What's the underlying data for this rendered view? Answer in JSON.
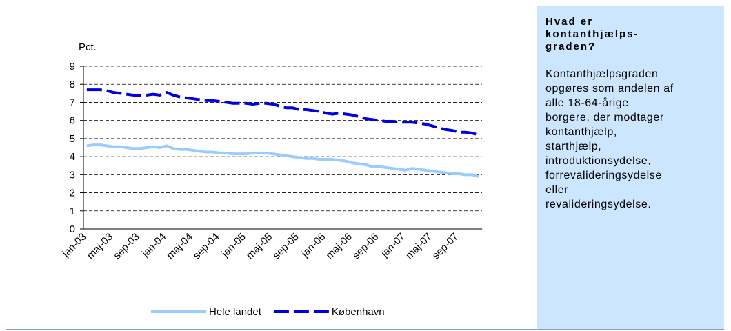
{
  "chart_data": {
    "type": "line",
    "y_label": "Pct.",
    "categories": [
      "jan-03",
      null,
      null,
      null,
      "maj-03",
      null,
      null,
      null,
      "sep-03",
      null,
      null,
      null,
      "jan-04",
      null,
      null,
      null,
      "maj-04",
      null,
      null,
      null,
      "sep-04",
      null,
      null,
      null,
      "jan-05",
      null,
      null,
      null,
      "maj-05",
      null,
      null,
      null,
      "sep-05",
      null,
      null,
      null,
      "jan-06",
      null,
      null,
      null,
      "maj-06",
      null,
      null,
      null,
      "sep-06",
      null,
      null,
      null,
      "jan-07",
      null,
      null,
      null,
      "maj-07",
      null,
      null,
      null,
      "sep-07",
      null,
      null,
      null
    ],
    "series": [
      {
        "name": "Hele landet",
        "color": "#99ccff",
        "dashed": false,
        "values": [
          4.6,
          4.65,
          4.65,
          4.6,
          4.55,
          4.55,
          4.5,
          4.45,
          4.45,
          4.5,
          4.55,
          4.5,
          4.6,
          4.45,
          4.4,
          4.4,
          4.35,
          4.3,
          4.25,
          4.25,
          4.2,
          4.2,
          4.15,
          4.15,
          4.15,
          4.2,
          4.2,
          4.2,
          4.15,
          4.1,
          4.05,
          4.0,
          3.95,
          3.9,
          3.9,
          3.85,
          3.85,
          3.85,
          3.8,
          3.75,
          3.65,
          3.6,
          3.55,
          3.45,
          3.45,
          3.4,
          3.35,
          3.3,
          3.25,
          3.35,
          3.3,
          3.25,
          3.2,
          3.15,
          3.1,
          3.05,
          3.05,
          3.0,
          3.0,
          2.9
        ]
      },
      {
        "name": "København",
        "color": "#0000dd",
        "dashed": true,
        "values": [
          7.7,
          7.7,
          7.7,
          7.65,
          7.55,
          7.5,
          7.45,
          7.4,
          7.4,
          7.4,
          7.45,
          7.4,
          7.55,
          7.4,
          7.3,
          7.25,
          7.2,
          7.15,
          7.1,
          7.1,
          7.05,
          7.0,
          6.95,
          6.95,
          6.95,
          6.9,
          6.95,
          6.95,
          6.9,
          6.8,
          6.7,
          6.7,
          6.6,
          6.6,
          6.55,
          6.5,
          6.4,
          6.35,
          6.4,
          6.35,
          6.3,
          6.2,
          6.1,
          6.05,
          6.0,
          5.95,
          5.95,
          5.9,
          5.9,
          5.9,
          5.85,
          5.8,
          5.7,
          5.6,
          5.5,
          5.45,
          5.35,
          5.35,
          5.3,
          5.2
        ]
      }
    ],
    "ylim": [
      0,
      9
    ],
    "yticks": [
      0,
      1,
      2,
      3,
      4,
      5,
      6,
      7,
      8,
      9
    ],
    "grid": true,
    "legend": "bottom"
  },
  "sidebar": {
    "title_lines": [
      "Hvad er",
      "kontanthjælps-",
      "graden?"
    ],
    "body_lines": [
      "Kontanthjælpsgraden",
      "opgøres som andelen af",
      "alle 18-64-årige",
      "borgere, der modtager",
      "kontanthjælp,",
      "starthjælp,",
      "introduktionsydelse,",
      "forrevalideringsydelse",
      "eller",
      "revalideringsydelse."
    ]
  }
}
